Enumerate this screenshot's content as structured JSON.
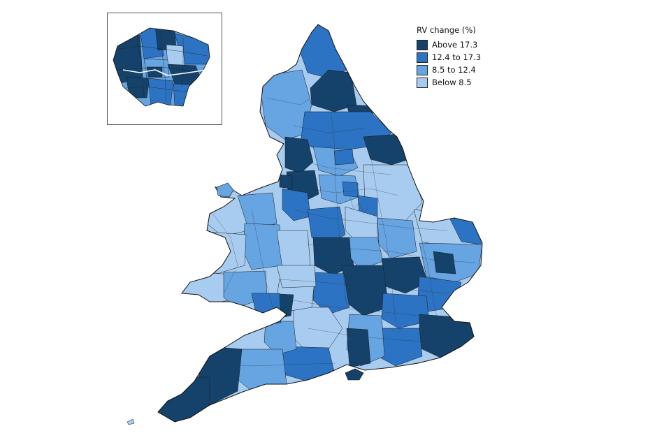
{
  "legend": {
    "title": "RV change (%)",
    "items": [
      {
        "label": "Above 17.3",
        "color": "#15426b"
      },
      {
        "label": "12.4 to 17.3",
        "color": "#2c73c4"
      },
      {
        "label": "8.5 to 12.4",
        "color": "#66a4e2"
      },
      {
        "label": "Below 8.5",
        "color": "#a8ccef"
      }
    ]
  }
}
